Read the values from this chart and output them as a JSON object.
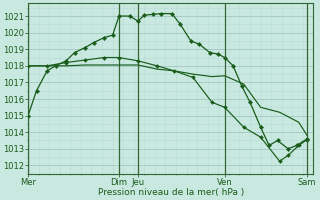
{
  "bg_color": "#c8e8e0",
  "grid_color_major": "#a0c8c0",
  "grid_color_minor": "#b8dcd8",
  "line_color": "#1a5c1a",
  "ylim": [
    1011.5,
    1021.8
  ],
  "xlim": [
    0,
    13.5
  ],
  "yticks": [
    1012,
    1013,
    1014,
    1015,
    1016,
    1017,
    1018,
    1019,
    1020,
    1021
  ],
  "xlabel": "Pression niveau de la mer( hPa )",
  "xtick_labels": [
    "Mer",
    "Dim",
    "Jeu",
    "Ven",
    "Sam"
  ],
  "xtick_pos": [
    0,
    4.3,
    5.2,
    9.3,
    13.2
  ],
  "vlines": [
    0.0,
    4.3,
    5.2,
    9.3,
    13.2
  ],
  "line1_x": [
    0,
    0.4,
    0.9,
    1.3,
    1.8,
    2.2,
    2.7,
    3.1,
    3.6,
    4.0,
    4.3,
    4.8,
    5.2,
    5.5,
    5.9,
    6.3,
    6.8,
    7.2,
    7.7,
    8.1,
    8.6,
    9.0,
    9.3,
    9.7,
    10.1,
    10.5,
    11.0,
    11.4,
    11.8,
    12.3,
    12.7,
    13.2
  ],
  "line1_y": [
    1015.0,
    1016.5,
    1017.7,
    1018.0,
    1018.3,
    1018.8,
    1019.1,
    1019.4,
    1019.7,
    1019.85,
    1021.0,
    1021.0,
    1020.7,
    1021.05,
    1021.1,
    1021.15,
    1021.15,
    1020.5,
    1019.5,
    1019.3,
    1018.8,
    1018.7,
    1018.5,
    1018.0,
    1016.8,
    1015.8,
    1014.3,
    1013.2,
    1013.5,
    1013.0,
    1013.2,
    1013.6
  ],
  "line2_x": [
    0,
    0.9,
    1.8,
    2.7,
    3.6,
    4.3,
    5.2,
    6.1,
    6.9,
    7.8,
    8.7,
    9.3,
    10.2,
    11.0,
    11.9,
    12.8,
    13.2
  ],
  "line2_y": [
    1018.0,
    1018.0,
    1018.0,
    1018.05,
    1018.05,
    1018.05,
    1018.05,
    1017.8,
    1017.7,
    1017.5,
    1017.35,
    1017.4,
    1016.9,
    1015.5,
    1015.2,
    1014.6,
    1013.8
  ],
  "line3_x": [
    0,
    0.9,
    1.8,
    2.7,
    3.6,
    4.3,
    5.2,
    6.1,
    6.9,
    7.8,
    8.7,
    9.3,
    10.2,
    11.0,
    11.9,
    12.3,
    12.8,
    13.2
  ],
  "line3_y": [
    1018.0,
    1018.0,
    1018.2,
    1018.35,
    1018.5,
    1018.5,
    1018.3,
    1018.0,
    1017.7,
    1017.3,
    1015.8,
    1015.5,
    1014.3,
    1013.7,
    1012.25,
    1012.6,
    1013.2,
    1013.55
  ]
}
